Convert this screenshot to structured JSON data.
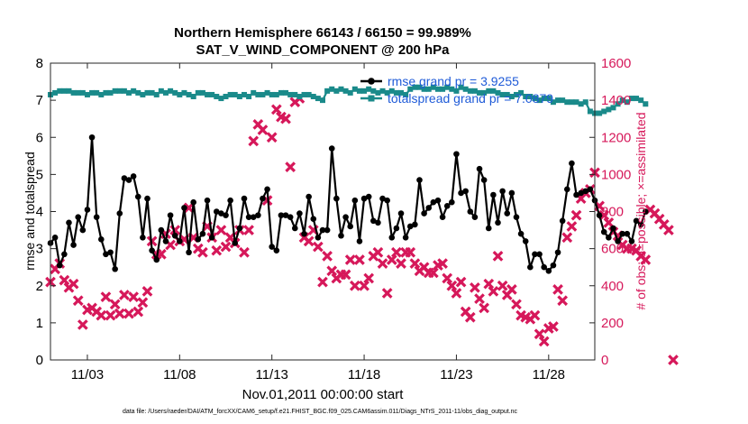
{
  "chart_data": {
    "type": "line",
    "title": "Northern Hemisphere 66143 / 66150 = 99.989%",
    "subtitle": "SAT_V_WIND_COMPONENT @ 200 hPa",
    "xlabel": "Nov.01,2011 00:00:00 start",
    "ylabel": "rmse and totalspread",
    "ylabel_right": "# of obs: o=possible; ×=assimilated",
    "footnote": "data file: /Users/raeder/DAI/ATM_forcXX/CAM6_setup/f.e21.FHIST_BGC.f09_025.CAM6assim.011/Diags_NTrS_2011-11/obs_diag_output.nc",
    "xlim": [
      0,
      29.5
    ],
    "ylim": [
      0,
      8
    ],
    "ylim_right": [
      0,
      1600
    ],
    "x_ticks": [
      2,
      7,
      12,
      17,
      22,
      27
    ],
    "x_tick_labels": [
      "11/03",
      "11/08",
      "11/13",
      "11/18",
      "11/23",
      "11/28"
    ],
    "y_ticks": [
      0,
      1,
      2,
      3,
      4,
      5,
      6,
      7,
      8
    ],
    "y_ticks_right": [
      0,
      200,
      400,
      600,
      800,
      1000,
      1200,
      1400,
      1600
    ],
    "colors": {
      "rmse": "#000000",
      "spread": "#1a8a8a",
      "obs": "#d6185a",
      "legend_text": "#1f5bd8"
    },
    "legend": [
      {
        "name": "rmse grand pr = 3.9255",
        "color": "#000000",
        "marker": "circle"
      },
      {
        "name": "totalspread grand pr = 7.0879",
        "color": "#1a8a8a",
        "marker": "square"
      }
    ],
    "series": [
      {
        "name": "rmse",
        "axis": "left",
        "x_step": 0.25,
        "values": [
          3.15,
          3.3,
          2.55,
          2.85,
          3.7,
          3.1,
          3.85,
          3.5,
          4.05,
          6.0,
          3.85,
          3.25,
          2.85,
          2.9,
          2.45,
          3.95,
          4.9,
          4.85,
          4.95,
          4.4,
          3.3,
          4.35,
          2.95,
          2.7,
          3.5,
          3.2,
          3.9,
          3.35,
          3.2,
          4.1,
          2.9,
          4.25,
          3.25,
          3.4,
          4.3,
          3.3,
          4.0,
          3.95,
          3.9,
          4.3,
          3.15,
          3.55,
          4.35,
          3.85,
          3.85,
          3.9,
          4.35,
          4.6,
          3.05,
          2.95,
          3.9,
          3.9,
          3.85,
          3.55,
          3.95,
          3.4,
          4.4,
          3.8,
          3.3,
          3.5,
          3.5,
          5.7,
          4.35,
          3.35,
          3.85,
          3.6,
          4.3,
          3.2,
          4.35,
          4.4,
          3.75,
          3.7,
          4.35,
          4.3,
          3.3,
          3.55,
          3.95,
          3.3,
          3.6,
          3.65,
          4.85,
          3.95,
          4.1,
          4.25,
          4.3,
          3.85,
          4.15,
          4.25,
          5.55,
          4.5,
          4.55,
          4.0,
          3.85,
          5.15,
          4.85,
          3.55,
          4.45,
          3.7,
          4.55,
          3.95,
          4.5,
          3.85,
          3.4,
          3.2,
          2.5,
          2.85,
          2.85,
          2.5,
          2.4,
          2.55,
          2.9,
          3.75,
          4.6,
          5.3,
          4.45,
          4.5,
          4.55,
          4.6,
          4.3,
          3.9,
          3.45,
          3.3,
          3.55,
          3.2,
          3.4,
          3.4,
          3.2,
          3.75,
          3.65,
          4.0
        ]
      },
      {
        "name": "totalspread",
        "axis": "left",
        "x_step": 0.25,
        "values": [
          7.15,
          7.2,
          7.25,
          7.25,
          7.25,
          7.2,
          7.2,
          7.2,
          7.15,
          7.2,
          7.2,
          7.15,
          7.2,
          7.2,
          7.25,
          7.25,
          7.25,
          7.2,
          7.25,
          7.2,
          7.15,
          7.2,
          7.2,
          7.15,
          7.25,
          7.2,
          7.25,
          7.2,
          7.15,
          7.2,
          7.15,
          7.1,
          7.2,
          7.2,
          7.15,
          7.15,
          7.1,
          7.05,
          7.1,
          7.15,
          7.15,
          7.1,
          7.15,
          7.1,
          7.2,
          7.15,
          7.15,
          7.2,
          7.15,
          7.15,
          7.2,
          7.2,
          7.15,
          7.15,
          7.1,
          7.15,
          7.15,
          7.1,
          7.05,
          7.0,
          7.25,
          7.3,
          7.25,
          7.3,
          7.25,
          7.2,
          7.3,
          7.25,
          7.25,
          7.3,
          7.25,
          7.2,
          7.25,
          7.2,
          7.25,
          7.2,
          7.2,
          7.15,
          7.3,
          7.35,
          7.35,
          7.3,
          7.3,
          7.35,
          7.3,
          7.3,
          7.35,
          7.3,
          7.25,
          7.35,
          7.3,
          7.25,
          7.25,
          7.2,
          7.2,
          7.25,
          7.25,
          7.2,
          7.15,
          7.15,
          7.1,
          7.15,
          7.2,
          7.1,
          7.1,
          7.05,
          7.0,
          7.05,
          7.05,
          6.95,
          7.0,
          7.0,
          6.95,
          6.95,
          6.95,
          6.9,
          6.95,
          6.7,
          6.65,
          6.65,
          6.7,
          6.75,
          6.8,
          6.9,
          7.0,
          6.95,
          7.05,
          7.05,
          7.0,
          6.9
        ]
      },
      {
        "name": "obs_assimilated",
        "axis": "right",
        "x_step": 0.25,
        "values": [
          420,
          490,
          520,
          430,
          390,
          410,
          320,
          190,
          270,
          280,
          260,
          240,
          340,
          240,
          300,
          250,
          350,
          250,
          340,
          260,
          310,
          370,
          640,
          570,
          570,
          680,
          620,
          700,
          640,
          650,
          820,
          660,
          600,
          580,
          720,
          660,
          590,
          700,
          610,
          660,
          630,
          700,
          580,
          700,
          1180,
          1270,
          1240,
          860,
          1200,
          1350,
          1310,
          1300,
          1040,
          1390,
          1410,
          660,
          640,
          700,
          610,
          420,
          560,
          480,
          440,
          460,
          460,
          540,
          400,
          540,
          400,
          440,
          560,
          580,
          520,
          360,
          540,
          580,
          520,
          580,
          580,
          520,
          480,
          500,
          470,
          470,
          510,
          520,
          440,
          400,
          360,
          420,
          260,
          230,
          390,
          330,
          280,
          410,
          370,
          560,
          400,
          350,
          380,
          300,
          240,
          230,
          220,
          240,
          140,
          100,
          170,
          180,
          380,
          320,
          660,
          720,
          780,
          870,
          900,
          920,
          1010,
          830,
          780,
          740,
          690,
          670,
          620,
          600,
          600,
          590,
          560,
          540,
          810,
          790,
          760,
          730,
          700,
          0
        ]
      }
    ],
    "obs_possible_values": [
      420,
      490,
      520,
      430,
      390,
      410,
      320,
      190,
      270,
      280,
      260,
      240,
      340,
      240,
      300,
      250,
      350,
      250,
      340,
      260,
      310,
      370,
      640,
      570,
      570,
      680,
      620,
      700,
      640,
      650,
      820,
      660,
      600,
      580,
      720,
      660,
      590,
      700,
      610,
      660,
      630,
      700,
      580,
      700,
      1180,
      1270,
      1240,
      860,
      1200,
      1350,
      1310,
      1300,
      1040,
      1390,
      1410,
      660,
      640,
      700,
      610,
      420,
      560,
      480,
      440,
      460,
      460,
      540,
      400,
      540,
      400,
      440,
      560,
      580,
      520,
      360,
      540,
      580,
      520,
      580,
      580,
      520,
      480,
      500,
      470,
      470,
      510,
      520,
      440,
      400,
      360,
      420,
      260,
      230,
      390,
      330,
      280,
      410,
      370,
      560,
      400,
      350,
      380,
      300,
      240,
      230,
      220,
      240,
      140,
      100,
      170,
      180,
      380,
      320,
      660,
      720,
      780,
      870,
      900,
      920,
      1010,
      830,
      780,
      740,
      690,
      670,
      620,
      600,
      600,
      590,
      560,
      540,
      810,
      790,
      760,
      730,
      700,
      0
    ]
  }
}
